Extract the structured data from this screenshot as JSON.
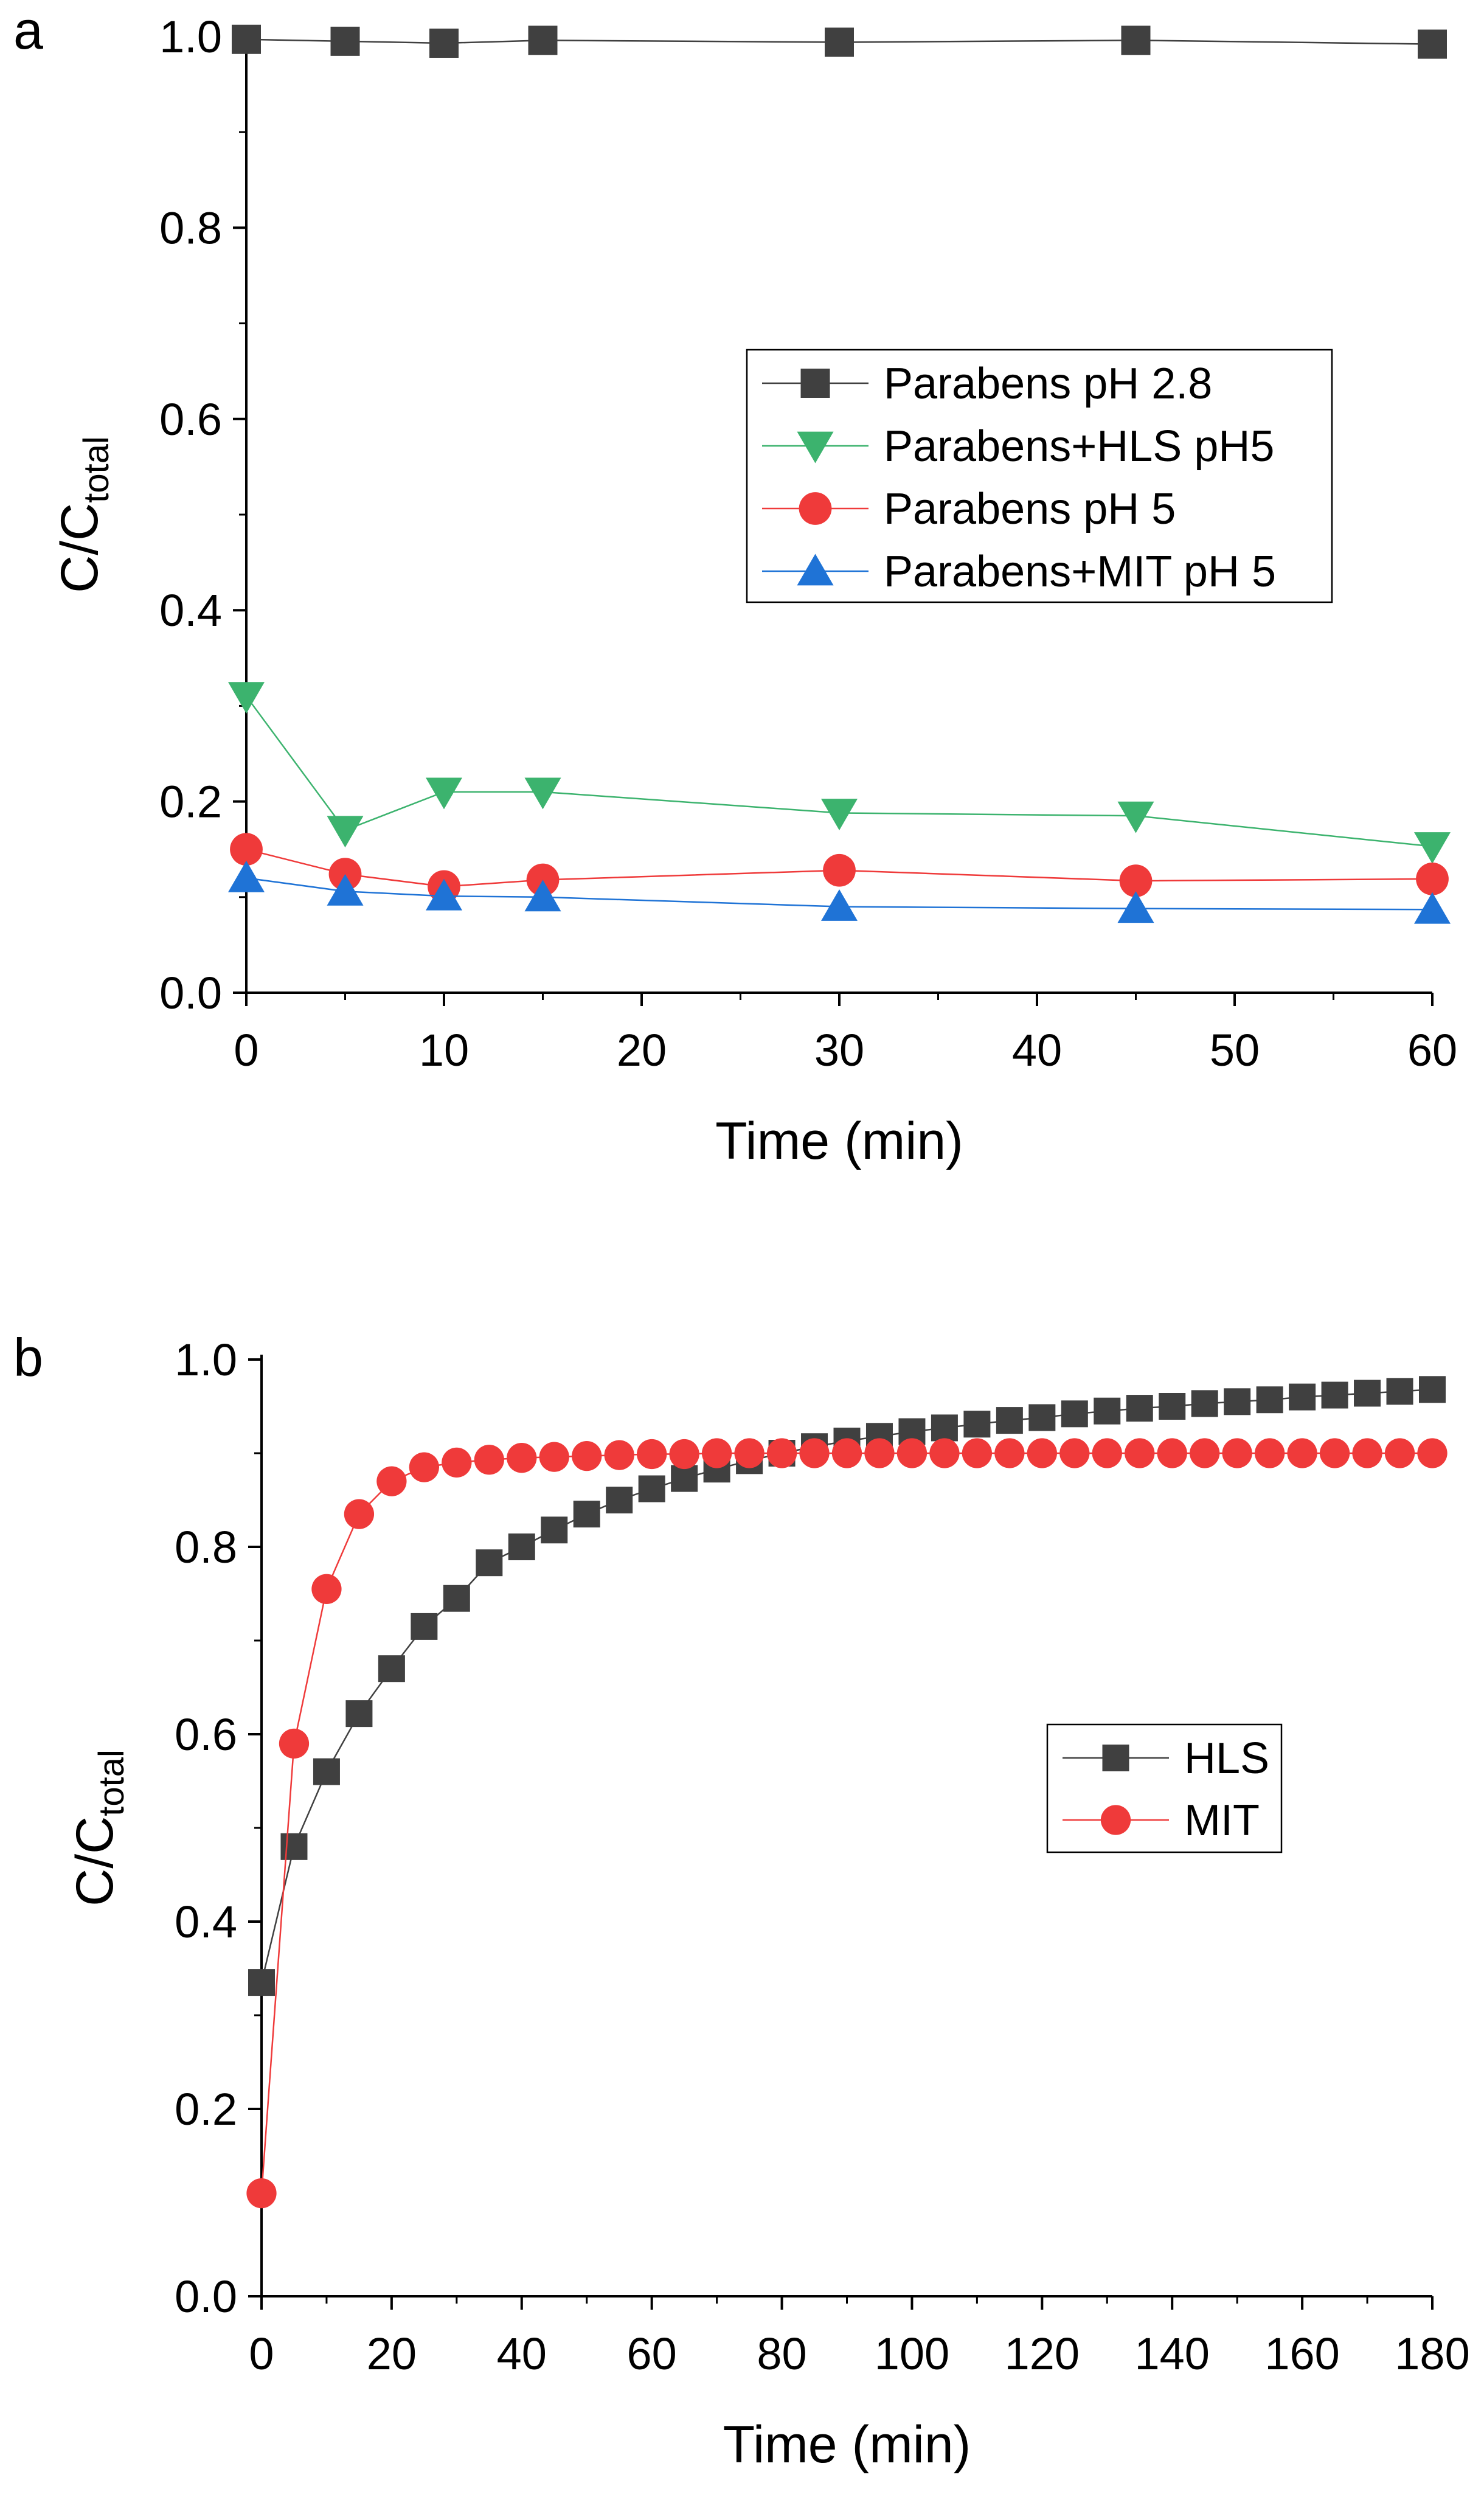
{
  "chart_data": [
    {
      "panel_label": "a",
      "type": "line",
      "xlabel": "Time (min)",
      "ylabel": "C/C",
      "ylabel_sub": "total",
      "xlim": [
        0,
        60
      ],
      "ylim": [
        0,
        1.0
      ],
      "x_major_ticks": [
        0,
        10,
        20,
        30,
        40,
        50,
        60
      ],
      "y_major_ticks": [
        0.0,
        0.2,
        0.4,
        0.6,
        0.8,
        1.0
      ],
      "x_tick_labels": [
        "0",
        "10",
        "20",
        "30",
        "40",
        "50",
        "60"
      ],
      "y_tick_labels": [
        "0.0",
        "0.2",
        "0.4",
        "0.6",
        "0.8",
        "1.0"
      ],
      "grid": false,
      "legend_position": "middle-right",
      "series": [
        {
          "name": "Parabens pH 2.8",
          "marker": "square",
          "color": "#404040",
          "x": [
            0,
            5,
            10,
            15,
            30,
            45,
            60
          ],
          "values": [
            0.997,
            0.995,
            0.993,
            0.996,
            0.994,
            0.996,
            0.992
          ]
        },
        {
          "name": "Parabens+HLS pH5",
          "marker": "triangle-down",
          "color": "#3cb36e",
          "x": [
            0,
            5,
            10,
            15,
            30,
            45,
            60
          ],
          "values": [
            0.31,
            0.17,
            0.21,
            0.21,
            0.188,
            0.185,
            0.153
          ]
        },
        {
          "name": "Parabens pH 5",
          "marker": "circle",
          "color": "#ef3a3a",
          "x": [
            0,
            5,
            10,
            15,
            30,
            45,
            60
          ],
          "values": [
            0.15,
            0.124,
            0.111,
            0.118,
            0.128,
            0.117,
            0.119
          ]
        },
        {
          "name": "Parabens+MIT pH 5",
          "marker": "triangle-up",
          "color": "#1f73d6",
          "x": [
            0,
            5,
            10,
            15,
            30,
            45,
            60
          ],
          "values": [
            0.12,
            0.106,
            0.101,
            0.1,
            0.09,
            0.088,
            0.087
          ]
        }
      ]
    },
    {
      "panel_label": "b",
      "type": "line",
      "xlabel": "Time (min)",
      "ylabel": "C/C",
      "ylabel_sub": "total",
      "xlim": [
        0,
        180
      ],
      "ylim": [
        0,
        1.0
      ],
      "x_major_ticks": [
        0,
        20,
        40,
        60,
        80,
        100,
        120,
        140,
        160,
        180
      ],
      "y_major_ticks": [
        0.0,
        0.2,
        0.4,
        0.6,
        0.8,
        1.0
      ],
      "x_tick_labels": [
        "0",
        "20",
        "40",
        "60",
        "80",
        "100",
        "120",
        "140",
        "160",
        "180"
      ],
      "y_tick_labels": [
        "0.0",
        "0.2",
        "0.4",
        "0.6",
        "0.8",
        "1.0"
      ],
      "grid": false,
      "legend_position": "middle-right",
      "series": [
        {
          "name": "HLS",
          "marker": "square",
          "color": "#404040",
          "x": [
            0,
            5,
            10,
            15,
            20,
            25,
            30,
            35,
            40,
            45,
            50,
            55,
            60,
            65,
            70,
            75,
            80,
            85,
            90,
            95,
            100,
            105,
            110,
            115,
            120,
            125,
            130,
            135,
            140,
            145,
            150,
            155,
            160,
            165,
            170,
            175,
            180
          ],
          "values": [
            0.335,
            0.48,
            0.56,
            0.622,
            0.67,
            0.715,
            0.745,
            0.783,
            0.8,
            0.818,
            0.835,
            0.85,
            0.862,
            0.873,
            0.883,
            0.892,
            0.9,
            0.907,
            0.913,
            0.918,
            0.923,
            0.927,
            0.931,
            0.935,
            0.938,
            0.942,
            0.945,
            0.948,
            0.95,
            0.953,
            0.955,
            0.957,
            0.96,
            0.962,
            0.964,
            0.966,
            0.968
          ]
        },
        {
          "name": "MIT",
          "marker": "circle",
          "color": "#ef3a3a",
          "x": [
            0,
            5,
            10,
            15,
            20,
            25,
            30,
            35,
            40,
            45,
            50,
            55,
            60,
            65,
            70,
            75,
            80,
            85,
            90,
            95,
            100,
            105,
            110,
            115,
            120,
            125,
            130,
            135,
            140,
            145,
            150,
            155,
            160,
            165,
            170,
            175,
            180
          ],
          "values": [
            0.11,
            0.59,
            0.755,
            0.835,
            0.87,
            0.885,
            0.89,
            0.893,
            0.895,
            0.896,
            0.897,
            0.898,
            0.899,
            0.899,
            0.9,
            0.9,
            0.9,
            0.9,
            0.9,
            0.9,
            0.9,
            0.9,
            0.9,
            0.9,
            0.9,
            0.9,
            0.9,
            0.9,
            0.9,
            0.9,
            0.9,
            0.9,
            0.9,
            0.9,
            0.9,
            0.9,
            0.9
          ]
        }
      ]
    }
  ]
}
